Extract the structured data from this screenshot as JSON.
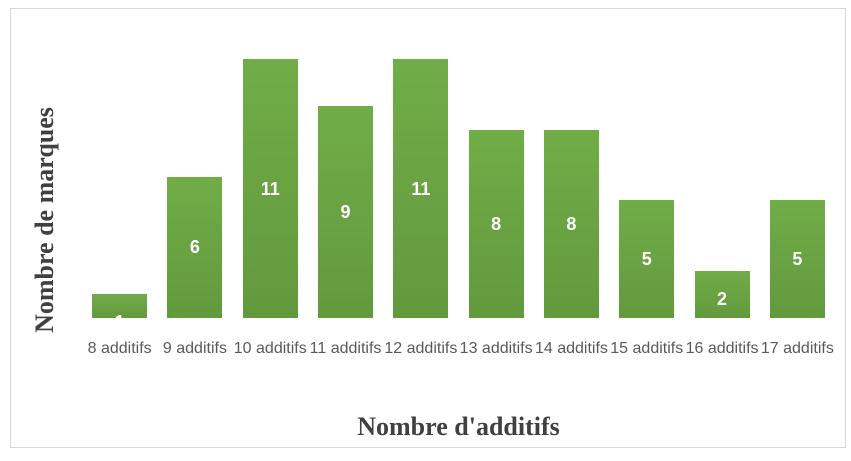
{
  "chart_data": {
    "type": "bar",
    "x_label": "Nombre d'additifs",
    "y_label": "Nombre de marques",
    "categories": [
      "8 additifs",
      "9 additifs",
      "10 additifs",
      "11 additifs",
      "12 additifs",
      "13 additifs",
      "14 additifs",
      "15 additifs",
      "16 additifs",
      "17 additifs"
    ],
    "values": [
      1,
      6,
      11,
      9,
      11,
      8,
      8,
      5,
      2,
      5
    ],
    "color": "#70ad47"
  }
}
